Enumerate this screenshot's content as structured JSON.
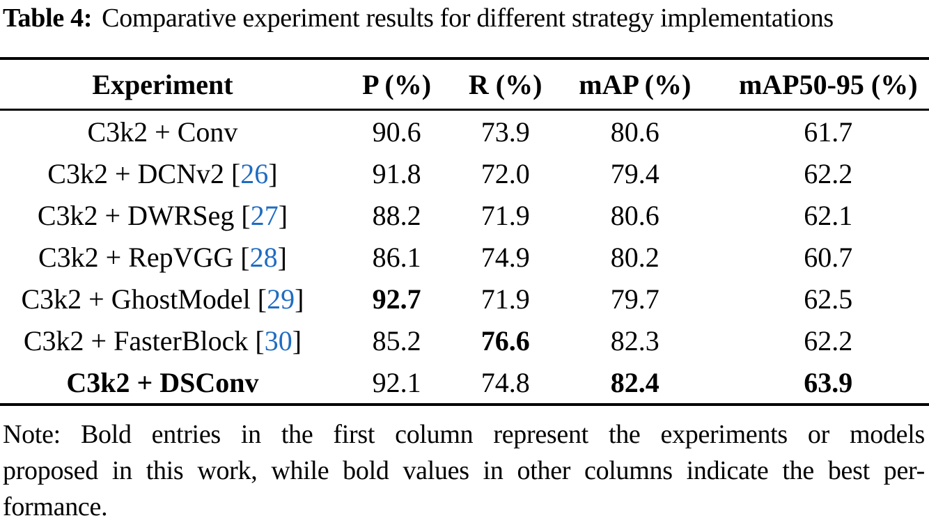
{
  "caption": {
    "label": "Table 4:",
    "text": "Comparative experiment results for different strategy implementations"
  },
  "table": {
    "columns": [
      {
        "label": "Experiment"
      },
      {
        "label": "P (%)"
      },
      {
        "label": "R (%)"
      },
      {
        "label": "mAP (%)"
      },
      {
        "label": "mAP50-95 (%)"
      }
    ],
    "rows": [
      {
        "experiment": {
          "name": "C3k2 + Conv",
          "cite": null,
          "bold": false
        },
        "values": [
          {
            "text": "90.6",
            "bold": false
          },
          {
            "text": "73.9",
            "bold": false
          },
          {
            "text": "80.6",
            "bold": false
          },
          {
            "text": "61.7",
            "bold": false
          }
        ]
      },
      {
        "experiment": {
          "name": "C3k2 + DCNv2",
          "cite": "26",
          "bold": false
        },
        "values": [
          {
            "text": "91.8",
            "bold": false
          },
          {
            "text": "72.0",
            "bold": false
          },
          {
            "text": "79.4",
            "bold": false
          },
          {
            "text": "62.2",
            "bold": false
          }
        ]
      },
      {
        "experiment": {
          "name": "C3k2 + DWRSeg",
          "cite": "27",
          "bold": false
        },
        "values": [
          {
            "text": "88.2",
            "bold": false
          },
          {
            "text": "71.9",
            "bold": false
          },
          {
            "text": "80.6",
            "bold": false
          },
          {
            "text": "62.1",
            "bold": false
          }
        ]
      },
      {
        "experiment": {
          "name": "C3k2 + RepVGG",
          "cite": "28",
          "bold": false
        },
        "values": [
          {
            "text": "86.1",
            "bold": false
          },
          {
            "text": "74.9",
            "bold": false
          },
          {
            "text": "80.2",
            "bold": false
          },
          {
            "text": "60.7",
            "bold": false
          }
        ]
      },
      {
        "experiment": {
          "name": "C3k2 + GhostModel",
          "cite": "29",
          "bold": false
        },
        "values": [
          {
            "text": "92.7",
            "bold": true
          },
          {
            "text": "71.9",
            "bold": false
          },
          {
            "text": "79.7",
            "bold": false
          },
          {
            "text": "62.5",
            "bold": false
          }
        ]
      },
      {
        "experiment": {
          "name": "C3k2 + FasterBlock",
          "cite": "30",
          "bold": false
        },
        "values": [
          {
            "text": "85.2",
            "bold": false
          },
          {
            "text": "76.6",
            "bold": true
          },
          {
            "text": "82.3",
            "bold": false
          },
          {
            "text": "62.2",
            "bold": false
          }
        ]
      },
      {
        "experiment": {
          "name": "C3k2 + DSConv",
          "cite": null,
          "bold": true
        },
        "values": [
          {
            "text": "92.1",
            "bold": false
          },
          {
            "text": "74.8",
            "bold": false
          },
          {
            "text": "82.4",
            "bold": true
          },
          {
            "text": "63.9",
            "bold": true
          }
        ]
      }
    ]
  },
  "note": {
    "lines": [
      "Note: Bold entries in the first column represent the experiments or models",
      "proposed in this work, while bold values in other columns indicate the best per-",
      "formance."
    ]
  },
  "colors": {
    "citation_blue": "#1f6cc2",
    "text": "#000000",
    "rule": "#000000"
  }
}
